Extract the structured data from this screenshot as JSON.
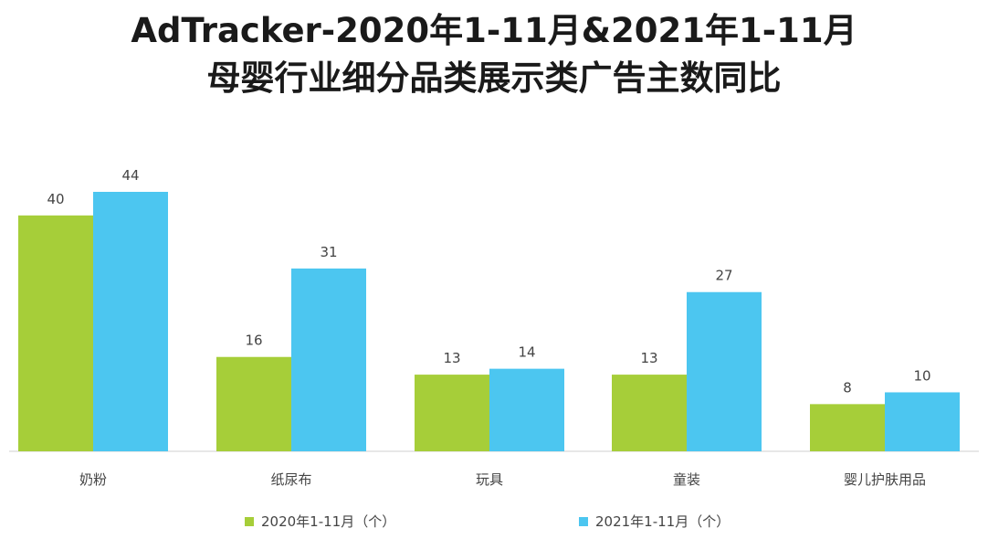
{
  "chart_data": {
    "type": "bar",
    "title": "AdTracker-2020年1-11月&2021年1-11月",
    "subtitle": "母婴行业细分品类展示类广告主数同比",
    "categories": [
      "奶粉",
      "纸尿布",
      "玩具",
      "童装",
      "婴儿护肤用品"
    ],
    "series": [
      {
        "name": "2020年1-11月（个）",
        "color": "#a6ce39",
        "values": [
          40,
          16,
          13,
          13,
          8
        ]
      },
      {
        "name": "2021年1-11月（个）",
        "color": "#4cc6f0",
        "values": [
          44,
          31,
          14,
          27,
          10
        ]
      }
    ],
    "ylim": [
      0,
      44
    ],
    "grid": false,
    "legend_position": "bottom"
  }
}
